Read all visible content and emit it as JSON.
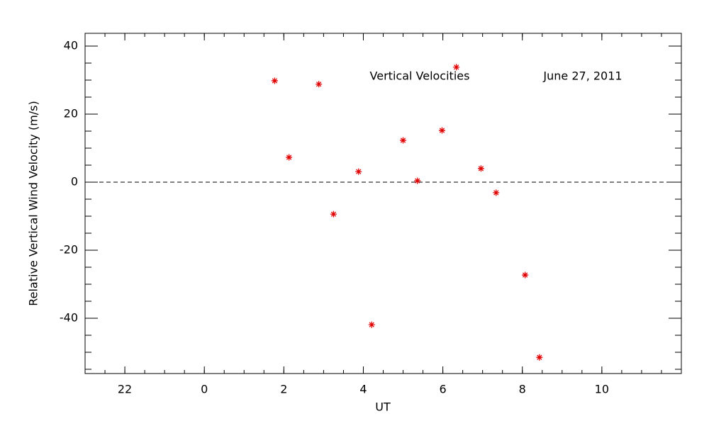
{
  "chart_data": {
    "type": "scatter",
    "annotations": [
      "Vertical Velocities",
      "June 27, 2011"
    ],
    "xlabel": "UT",
    "ylabel": "Relative Vertical Wind Velocity (m/s)",
    "x": [
      1.77,
      2.13,
      2.88,
      3.25,
      3.88,
      4.21,
      5.0,
      5.36,
      5.98,
      6.34,
      6.96,
      7.34,
      8.07,
      8.43
    ],
    "series": [
      {
        "color": "#e00000",
        "values": [
          29.8,
          7.3,
          28.8,
          -9.4,
          3.1,
          -41.9,
          12.3,
          0.4,
          15.2,
          33.8,
          4.0,
          -3.1,
          -27.3,
          -51.5
        ]
      }
    ],
    "reference_line": 0,
    "xlim": [
      -3,
      12
    ],
    "xticks": [
      {
        "value": -2,
        "label": "22"
      },
      0,
      2,
      4,
      6,
      8,
      10
    ],
    "ylim": [
      -56.25,
      43.75
    ],
    "yticks": [
      -40,
      -20,
      0,
      20,
      40
    ]
  }
}
